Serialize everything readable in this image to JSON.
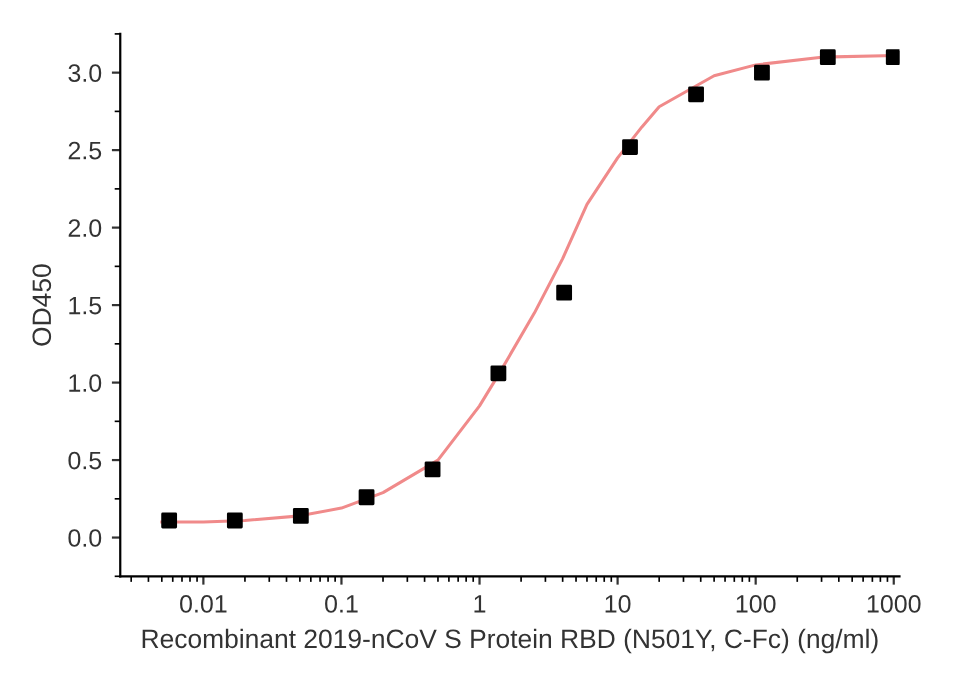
{
  "chart_data": {
    "type": "scatter",
    "xlabel": "Recombinant 2019-nCoV S Protein RBD (N501Y, C-Fc) (ng/ml)",
    "ylabel": "OD450",
    "log": "x",
    "grid": false,
    "legend": false,
    "xlim": [
      0.0025,
      1100
    ],
    "xticks": [
      {
        "value": 0.01,
        "label": "0.01"
      },
      {
        "value": 0.1,
        "label": "0.1"
      },
      {
        "value": 1,
        "label": "1"
      },
      {
        "value": 10,
        "label": "10"
      },
      {
        "value": 100,
        "label": "100"
      },
      {
        "value": 1000,
        "label": "1000"
      }
    ],
    "ylim": [
      -0.25,
      3.25
    ],
    "yticks": [
      {
        "value": 0,
        "label": "0.0"
      },
      {
        "value": 0.5,
        "label": "0.5"
      },
      {
        "value": 1,
        "label": "1.0"
      },
      {
        "value": 1.5,
        "label": "1.5"
      },
      {
        "value": 2,
        "label": "2.0"
      },
      {
        "value": 2.5,
        "label": "2.5"
      },
      {
        "value": 3,
        "label": "3.0"
      }
    ],
    "series": [
      {
        "type": "line",
        "color": "#f08a8a",
        "marker": "none",
        "line_style": "solid",
        "x": [
          0.005,
          0.01,
          0.02,
          0.05,
          0.1,
          0.2,
          0.5,
          1,
          1.37,
          2.5,
          4,
          6,
          10,
          15,
          20,
          50,
          100,
          300,
          1000
        ],
        "values": [
          0.1,
          0.1,
          0.11,
          0.14,
          0.19,
          0.29,
          0.5,
          0.85,
          1.05,
          1.45,
          1.8,
          2.15,
          2.45,
          2.65,
          2.78,
          2.98,
          3.05,
          3.1,
          3.11
        ]
      },
      {
        "color": "#000000",
        "marker": "square",
        "x": [
          0.00565,
          0.0169,
          0.0508,
          0.152,
          0.457,
          1.37,
          4.1,
          12.3,
          37,
          111,
          333,
          1000
        ],
        "values": [
          0.11,
          0.11,
          0.14,
          0.26,
          0.44,
          1.06,
          1.58,
          2.52,
          2.86,
          3.0,
          3.1,
          3.1
        ]
      }
    ]
  }
}
